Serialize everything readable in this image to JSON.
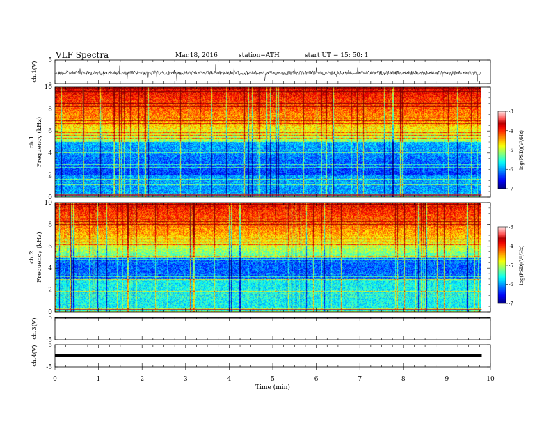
{
  "header": {
    "title": "VLF  Spectra",
    "date": "Mar.18, 2016",
    "station": "station=ATH",
    "start": "start  UT  =    15: 50: 1"
  },
  "chart_data": [
    {
      "type": "line",
      "id": "ch1-waveform",
      "ylabel": "ch.1(V)",
      "ylim": [
        -5,
        5
      ],
      "yticks": [
        5,
        -5
      ],
      "xlim": [
        0,
        10
      ],
      "data_extent": [
        0,
        9.8
      ]
    },
    {
      "type": "heatmap",
      "id": "ch1-spectrogram",
      "ylabel_top": "ch.1",
      "ylabel": "Frequency  (kHz)",
      "ylim": [
        0,
        10
      ],
      "yticks": [
        0,
        2,
        4,
        6,
        8,
        10
      ],
      "xlim": [
        0,
        10
      ],
      "data_extent": [
        0,
        9.8
      ],
      "colorbar": {
        "label": "log(PSD)(V²/Hz)",
        "range": [
          -7,
          -3
        ],
        "ticks": [
          "-3",
          "-4",
          "-5",
          "-6",
          "-7"
        ]
      }
    },
    {
      "type": "heatmap",
      "id": "ch2-spectrogram",
      "ylabel_top": "ch.2",
      "ylabel": "Frequency  (kHz)",
      "ylim": [
        0,
        10
      ],
      "yticks": [
        0,
        2,
        4,
        6,
        8,
        10
      ],
      "xlim": [
        0,
        10
      ],
      "data_extent": [
        0,
        9.8
      ],
      "colorbar": {
        "label": "log(PSD)(V²/Hz)",
        "range": [
          -7,
          -3
        ],
        "ticks": [
          "-3",
          "-4",
          "-5",
          "-6",
          "-7"
        ]
      }
    },
    {
      "type": "line",
      "id": "ch3-waveform",
      "ylabel": "ch.3(V)",
      "ylim": [
        -5,
        5
      ],
      "yticks": [
        5,
        -5
      ],
      "xlim": [
        0,
        10
      ]
    },
    {
      "type": "line",
      "id": "ch4-waveform",
      "ylabel": "ch.4(V)",
      "ylim": [
        -5,
        5
      ],
      "yticks": [
        5,
        -5
      ],
      "xlim": [
        0,
        10
      ],
      "xlabel": "Time  (min)",
      "xticks": [
        0,
        1,
        2,
        3,
        4,
        5,
        6,
        7,
        8,
        9,
        10
      ]
    }
  ]
}
